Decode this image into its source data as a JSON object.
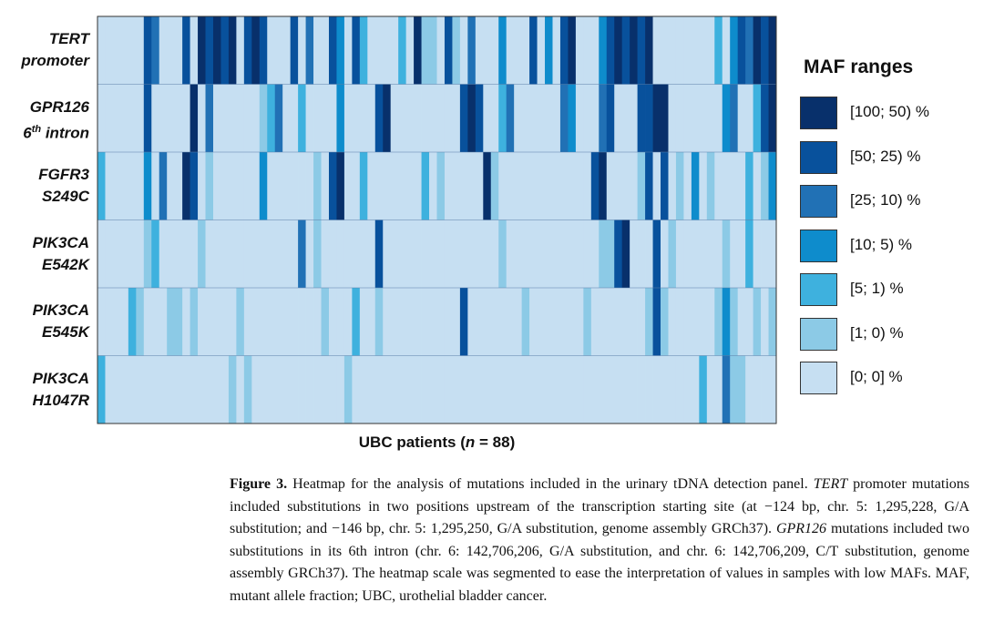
{
  "chart_data": {
    "type": "heatmap",
    "title": "",
    "xlabel": "UBC patients (n = 88)",
    "xlabel_parts": {
      "prefix": "UBC patients (",
      "italic": "n",
      "suffix": " = 88)"
    },
    "n_columns": 88,
    "rows": [
      {
        "label_lines": [
          "TERT",
          "promoter"
        ],
        "values": [
          0,
          0,
          0,
          0,
          0,
          0,
          5,
          4,
          0,
          0,
          0,
          5,
          0,
          6,
          5,
          6,
          5,
          6,
          0,
          5,
          6,
          5,
          0,
          0,
          0,
          5,
          0,
          4,
          0,
          0,
          5,
          3,
          0,
          5,
          2,
          0,
          0,
          0,
          0,
          2,
          0,
          6,
          1,
          1,
          0,
          5,
          1,
          0,
          4,
          0,
          0,
          0,
          3,
          0,
          0,
          0,
          5,
          0,
          3,
          0,
          5,
          6,
          0,
          0,
          0,
          3,
          5,
          6,
          5,
          6,
          5,
          6,
          0,
          0,
          0,
          0,
          0,
          0,
          0,
          0,
          2,
          0,
          3,
          5,
          4,
          6,
          5,
          6
        ]
      },
      {
        "label_lines": [
          "GPR126",
          "6th intron"
        ],
        "values": [
          0,
          0,
          0,
          0,
          0,
          0,
          5,
          0,
          0,
          0,
          0,
          0,
          6,
          0,
          4,
          0,
          0,
          0,
          0,
          0,
          0,
          1,
          2,
          4,
          0,
          0,
          2,
          0,
          0,
          0,
          0,
          3,
          0,
          0,
          0,
          0,
          5,
          6,
          0,
          0,
          0,
          0,
          0,
          0,
          0,
          0,
          0,
          5,
          6,
          5,
          0,
          0,
          2,
          4,
          0,
          0,
          0,
          0,
          0,
          0,
          4,
          3,
          0,
          0,
          0,
          4,
          5,
          0,
          0,
          0,
          5,
          5,
          6,
          6,
          0,
          0,
          0,
          0,
          0,
          0,
          0,
          3,
          4,
          0,
          0,
          2,
          5,
          6
        ]
      },
      {
        "label_lines": [
          "FGFR3",
          "S249C"
        ],
        "values": [
          2,
          0,
          0,
          0,
          0,
          0,
          3,
          0,
          4,
          0,
          0,
          6,
          5,
          0,
          1,
          0,
          0,
          0,
          0,
          0,
          0,
          3,
          0,
          0,
          0,
          0,
          0,
          0,
          1,
          0,
          5,
          6,
          0,
          0,
          2,
          0,
          0,
          0,
          0,
          0,
          0,
          0,
          2,
          0,
          1,
          0,
          0,
          0,
          0,
          0,
          6,
          1,
          0,
          0,
          0,
          0,
          0,
          0,
          0,
          0,
          0,
          0,
          0,
          0,
          5,
          6,
          0,
          0,
          0,
          0,
          1,
          5,
          0,
          5,
          0,
          1,
          0,
          3,
          0,
          1,
          0,
          0,
          0,
          0,
          2,
          0,
          1,
          3
        ]
      },
      {
        "label_lines": [
          "PIK3CA",
          "E542K"
        ],
        "values": [
          0,
          0,
          0,
          0,
          0,
          0,
          1,
          2,
          0,
          0,
          0,
          0,
          0,
          1,
          0,
          0,
          0,
          0,
          0,
          0,
          0,
          0,
          0,
          0,
          0,
          0,
          4,
          0,
          1,
          0,
          0,
          0,
          0,
          0,
          0,
          0,
          5,
          0,
          0,
          0,
          0,
          0,
          0,
          0,
          0,
          0,
          0,
          0,
          0,
          0,
          0,
          0,
          1,
          0,
          0,
          0,
          0,
          0,
          0,
          0,
          0,
          0,
          0,
          0,
          0,
          1,
          1,
          5,
          6,
          0,
          0,
          0,
          5,
          0,
          1,
          0,
          0,
          0,
          0,
          0,
          0,
          1,
          0,
          0,
          2,
          0,
          0,
          0
        ]
      },
      {
        "label_lines": [
          "PIK3CA",
          "E545K"
        ],
        "values": [
          0,
          0,
          0,
          0,
          2,
          1,
          0,
          0,
          0,
          1,
          1,
          0,
          1,
          0,
          0,
          0,
          0,
          0,
          1,
          0,
          0,
          0,
          0,
          0,
          0,
          0,
          0,
          0,
          0,
          1,
          0,
          0,
          0,
          2,
          0,
          0,
          1,
          0,
          0,
          0,
          0,
          0,
          0,
          0,
          0,
          0,
          0,
          5,
          0,
          0,
          0,
          0,
          0,
          0,
          0,
          1,
          0,
          0,
          0,
          0,
          0,
          0,
          0,
          1,
          0,
          0,
          0,
          0,
          0,
          0,
          0,
          1,
          5,
          1,
          0,
          0,
          0,
          0,
          0,
          0,
          1,
          3,
          1,
          0,
          0,
          1,
          0,
          1
        ]
      },
      {
        "label_lines": [
          "PIK3CA",
          "H1047R"
        ],
        "values": [
          2,
          0,
          0,
          0,
          0,
          0,
          0,
          0,
          0,
          0,
          0,
          0,
          0,
          0,
          0,
          0,
          0,
          1,
          0,
          1,
          0,
          0,
          0,
          0,
          0,
          0,
          0,
          0,
          0,
          0,
          0,
          0,
          1,
          0,
          0,
          0,
          0,
          0,
          0,
          0,
          0,
          0,
          0,
          0,
          0,
          0,
          0,
          0,
          0,
          0,
          0,
          0,
          0,
          0,
          0,
          0,
          0,
          0,
          0,
          0,
          0,
          0,
          0,
          0,
          0,
          0,
          0,
          0,
          0,
          0,
          0,
          0,
          0,
          0,
          0,
          0,
          0,
          0,
          2,
          0,
          0,
          4,
          1,
          1,
          0,
          0,
          0,
          0
        ]
      }
    ],
    "legend": {
      "title": "MAF ranges",
      "items": [
        {
          "label": "[100; 50) %",
          "color": "#08306b",
          "level": 6
        },
        {
          "label": "[50; 25) %",
          "color": "#08519c",
          "level": 5
        },
        {
          "label": "[25; 10) %",
          "color": "#2171b5",
          "level": 4
        },
        {
          "label": "[10; 5) %",
          "color": "#0e8ccc",
          "level": 3
        },
        {
          "label": "[5; 1) %",
          "color": "#3eb1de",
          "level": 2
        },
        {
          "label": "[1; 0) %",
          "color": "#8ccae6",
          "level": 1
        },
        {
          "label": "[0; 0] %",
          "color": "#c6dff2",
          "level": 0
        }
      ]
    }
  },
  "caption": {
    "label": "Figure 3.",
    "segments": [
      {
        "t": " Heatmap for the analysis of mutations included in the urinary tDNA detection panel. ",
        "i": false
      },
      {
        "t": "TERT",
        "i": true
      },
      {
        "t": " promoter mutations included substitutions in two positions upstream of the transcription starting site (at −124 bp, chr. 5: 1,295,228, G/A substitution; and −146 bp, chr. 5: 1,295,250, G/A substitution, genome assembly GRCh37). ",
        "i": false
      },
      {
        "t": "GPR126",
        "i": true
      },
      {
        "t": " mutations included two substitutions in its 6th intron (chr. 6: 142,706,206, G/A substitution, and chr. 6: 142,706,209, C/T substitution, genome assembly GRCh37). The heatmap scale was segmented to ease the interpretation of values in samples with low MAFs. MAF, mutant allele fraction; UBC, urothelial bladder cancer.",
        "i": false
      }
    ]
  }
}
